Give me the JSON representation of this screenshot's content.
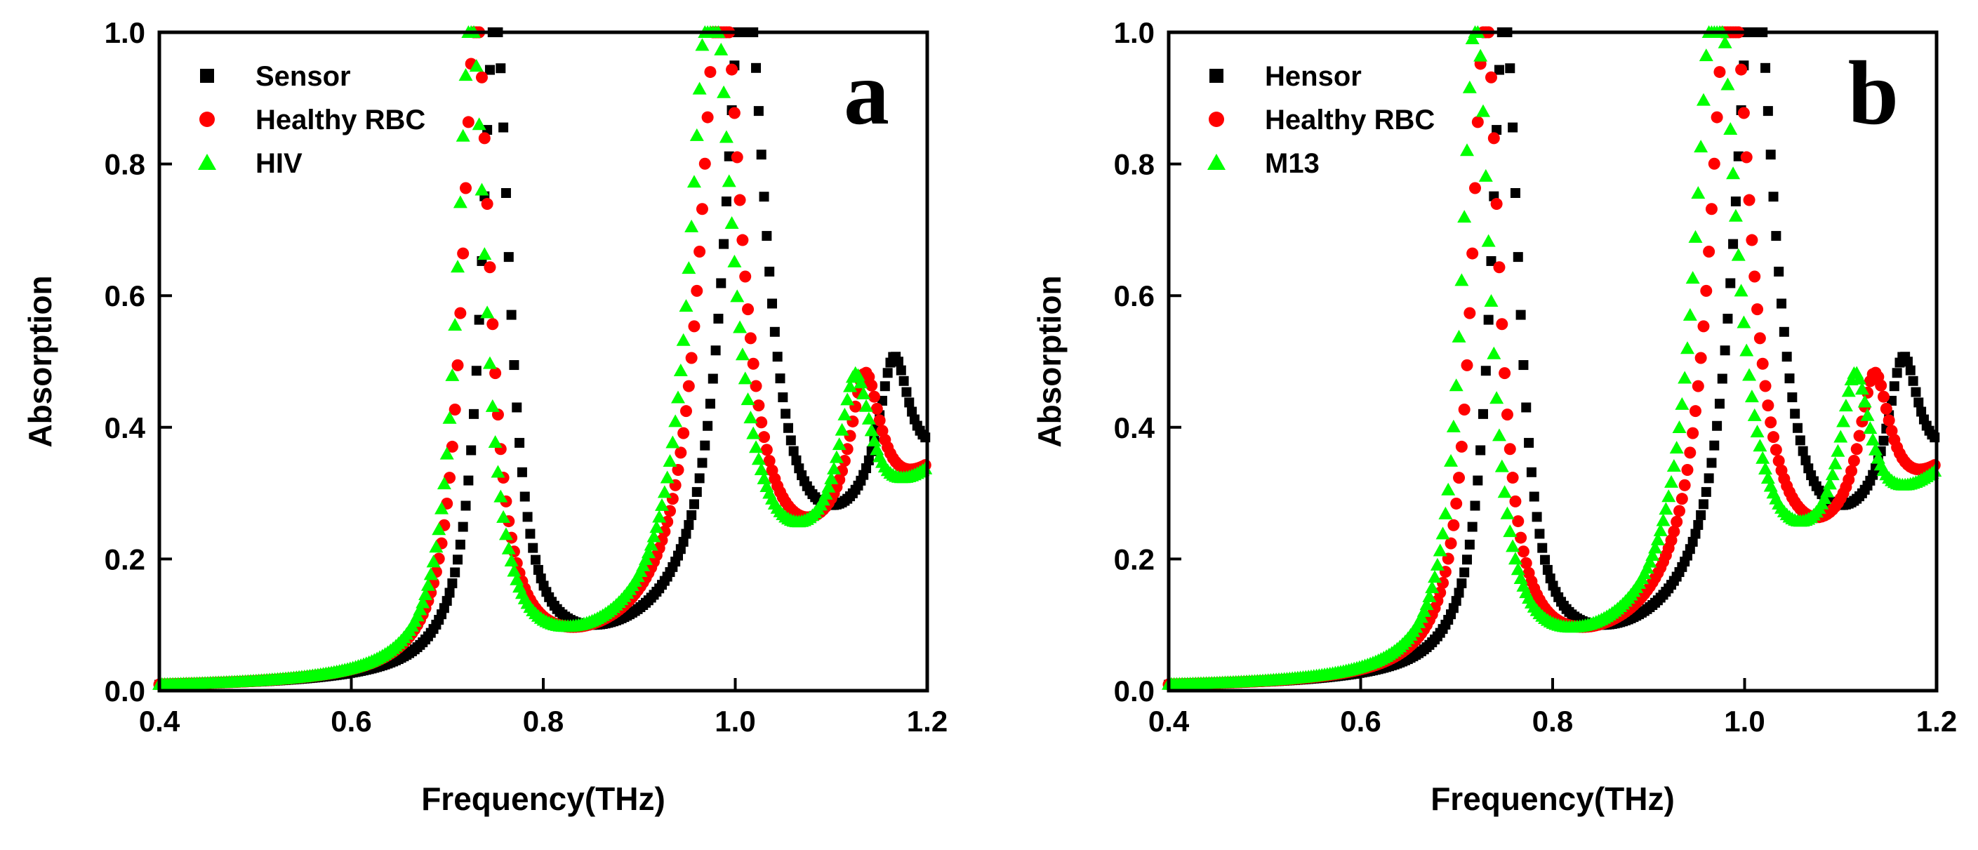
{
  "colors": {
    "black": "#000000",
    "red": "#ff0000",
    "green": "#00ff00"
  },
  "chart_data": [
    {
      "type": "scatter",
      "panel_label": "a",
      "xlabel": "Frequency(THz)",
      "ylabel": "Absorption",
      "xlim": [
        0.4,
        1.2
      ],
      "ylim": [
        0.0,
        1.0
      ],
      "xticks": [
        "0.4",
        "0.6",
        "0.8",
        "1.0",
        "1.2"
      ],
      "yticks": [
        "0.0",
        "0.2",
        "0.4",
        "0.6",
        "0.8",
        "1.0"
      ],
      "legend_position": "top-left",
      "series": [
        {
          "name": "Sensor",
          "marker": "square",
          "color": "#000000",
          "peaks": [
            {
              "f": 0.75,
              "a": 1.0,
              "w": 0.018
            },
            {
              "f": 1.01,
              "a": 0.98,
              "w": 0.026
            },
            {
              "f": 1.165,
              "a": 0.22,
              "w": 0.02
            }
          ]
        },
        {
          "name": "Healthy RBC",
          "marker": "circle",
          "color": "#ff0000",
          "peaks": [
            {
              "f": 0.73,
              "a": 1.0,
              "w": 0.018
            },
            {
              "f": 0.985,
              "a": 0.99,
              "w": 0.026
            },
            {
              "f": 1.135,
              "a": 0.23,
              "w": 0.02
            }
          ]
        },
        {
          "name": "HIV",
          "marker": "triangle",
          "color": "#00ff00",
          "peaks": [
            {
              "f": 0.725,
              "a": 1.0,
              "w": 0.018
            },
            {
              "f": 0.975,
              "a": 1.0,
              "w": 0.026
            },
            {
              "f": 1.125,
              "a": 0.24,
              "w": 0.02
            }
          ]
        }
      ]
    },
    {
      "type": "scatter",
      "panel_label": "b",
      "xlabel": "Frequency(THz)",
      "ylabel": "Absorption",
      "xlim": [
        0.4,
        1.2
      ],
      "ylim": [
        0.0,
        1.0
      ],
      "xticks": [
        "0.4",
        "0.6",
        "0.8",
        "1.0",
        "1.2"
      ],
      "yticks": [
        "0.0",
        "0.2",
        "0.4",
        "0.6",
        "0.8",
        "1.0"
      ],
      "legend_position": "top-left",
      "series": [
        {
          "name": "Hensor",
          "marker": "square",
          "color": "#000000",
          "peaks": [
            {
              "f": 0.75,
              "a": 1.0,
              "w": 0.018
            },
            {
              "f": 1.01,
              "a": 0.98,
              "w": 0.026
            },
            {
              "f": 1.165,
              "a": 0.22,
              "w": 0.02
            }
          ]
        },
        {
          "name": "Healthy RBC",
          "marker": "circle",
          "color": "#ff0000",
          "peaks": [
            {
              "f": 0.73,
              "a": 1.0,
              "w": 0.018
            },
            {
              "f": 0.985,
              "a": 0.99,
              "w": 0.026
            },
            {
              "f": 1.135,
              "a": 0.23,
              "w": 0.02
            }
          ]
        },
        {
          "name": "M13",
          "marker": "triangle",
          "color": "#00ff00",
          "peaks": [
            {
              "f": 0.72,
              "a": 1.0,
              "w": 0.018
            },
            {
              "f": 0.97,
              "a": 1.0,
              "w": 0.026
            },
            {
              "f": 1.115,
              "a": 0.25,
              "w": 0.02
            }
          ]
        }
      ]
    }
  ]
}
